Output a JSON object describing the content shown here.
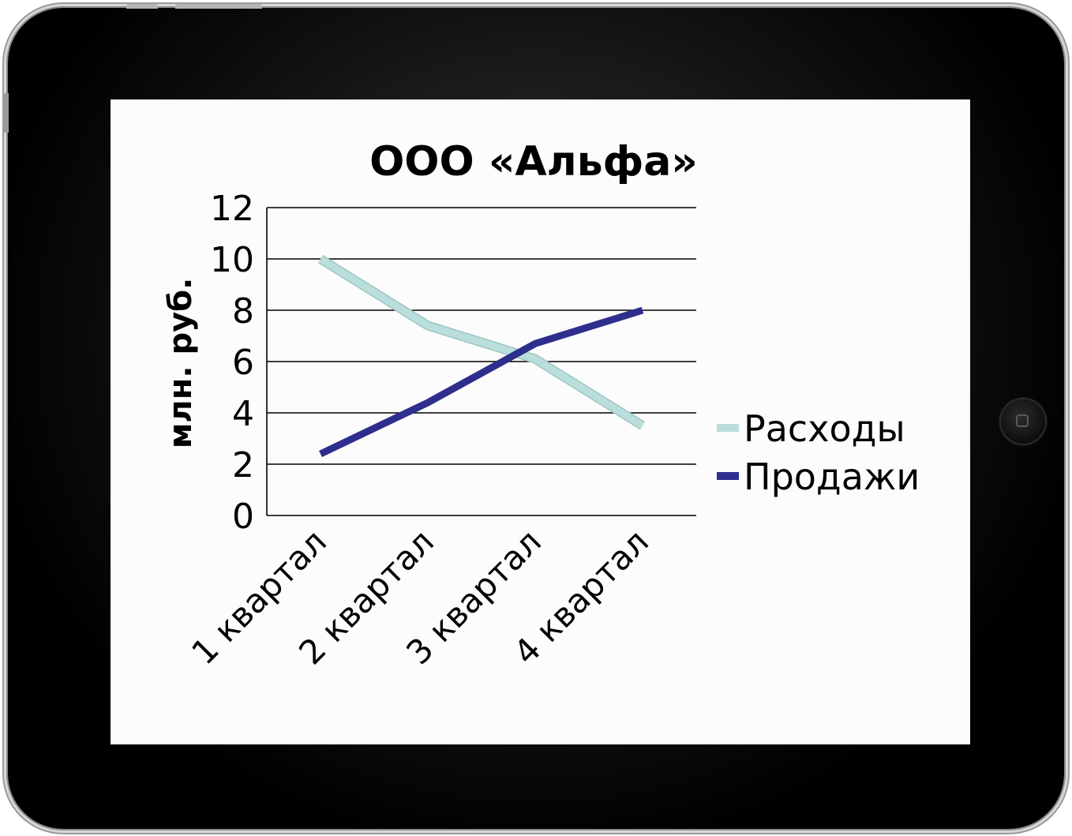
{
  "colors": {
    "bezel": "#000000",
    "screen": "#fdfcfd",
    "rashody": "#b9dedc",
    "prodazhi": "#2e2e8c",
    "grid": "#000000"
  },
  "icons": {
    "home_button": "home-button-icon"
  },
  "chart_data": {
    "type": "line",
    "title": "ООО «Альфа»",
    "ylabel": "млн. руб.",
    "xlabel": "",
    "categories": [
      "1 квартал",
      "2 квартал",
      "3 квартал",
      "4 квартал"
    ],
    "ylim": [
      0,
      12
    ],
    "yticks": [
      "0",
      "2",
      "4",
      "6",
      "8",
      "10",
      "12"
    ],
    "grid": true,
    "legend_position": "right",
    "series": [
      {
        "name": "Расходы",
        "values": [
          10,
          7.4,
          6.1,
          3.5
        ],
        "color": "#b9dedc"
      },
      {
        "name": "Продажи",
        "values": [
          2.4,
          4.4,
          6.7,
          8
        ],
        "color": "#2e2e8c"
      }
    ]
  }
}
